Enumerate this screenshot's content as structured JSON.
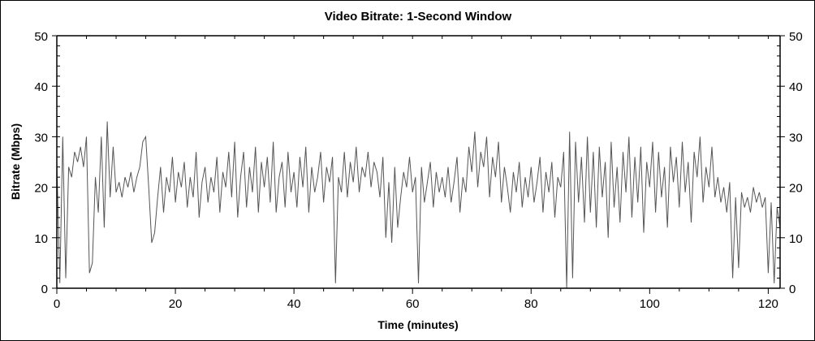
{
  "chart_data": {
    "type": "line",
    "title": "Video Bitrate: 1-Second Window",
    "xlabel": "Time (minutes)",
    "ylabel": "Bitrate (Mbps)",
    "xlim": [
      0,
      122
    ],
    "ylim": [
      0,
      50
    ],
    "x_ticks": [
      "0",
      "20",
      "40",
      "60",
      "80",
      "100",
      "120"
    ],
    "y_ticks": [
      "0",
      "10",
      "20",
      "30",
      "40",
      "50"
    ],
    "y_axis_right_mirrored": true,
    "grid": false,
    "legend": "none",
    "line_color": "#555555",
    "x_step": 0.5,
    "series": [
      {
        "values": [
          25,
          1,
          30,
          2,
          24,
          22,
          27,
          25,
          28,
          24,
          30,
          3,
          5,
          22,
          15,
          30,
          12,
          33,
          18,
          28,
          19,
          21,
          18,
          22,
          20,
          23,
          19,
          22,
          24,
          29,
          30,
          20,
          9,
          11,
          18,
          24,
          15,
          22,
          19,
          26,
          17,
          23,
          20,
          25,
          16,
          22,
          18,
          27,
          14,
          21,
          24,
          17,
          22,
          19,
          26,
          15,
          23,
          20,
          27,
          18,
          29,
          14,
          22,
          27,
          16,
          24,
          19,
          28,
          15,
          25,
          20,
          26,
          17,
          29,
          15,
          22,
          25,
          16,
          27,
          19,
          23,
          16,
          26,
          20,
          28,
          15,
          24,
          19,
          22,
          27,
          17,
          24,
          21,
          26,
          1,
          22,
          19,
          27,
          18,
          25,
          21,
          28,
          19,
          24,
          22,
          27,
          20,
          25,
          23,
          18,
          26,
          10,
          21,
          9,
          24,
          12,
          18,
          23,
          20,
          26,
          19,
          22,
          1,
          24,
          17,
          21,
          25,
          16,
          23,
          19,
          22,
          18,
          24,
          17,
          21,
          26,
          15,
          22,
          19,
          28,
          23,
          31,
          20,
          27,
          24,
          30,
          18,
          26,
          22,
          29,
          17,
          24,
          20,
          15,
          23,
          19,
          25,
          16,
          22,
          18,
          24,
          17,
          21,
          26,
          15,
          23,
          19,
          25,
          14,
          22,
          20,
          27,
          0,
          31,
          2,
          29,
          17,
          26,
          13,
          30,
          15,
          27,
          12,
          28,
          18,
          25,
          10,
          29,
          16,
          24,
          13,
          27,
          19,
          30,
          14,
          26,
          17,
          28,
          11,
          25,
          20,
          29,
          15,
          27,
          18,
          24,
          12,
          28,
          21,
          26,
          16,
          29,
          19,
          25,
          13,
          27,
          22,
          30,
          17,
          24,
          20,
          28,
          18,
          22,
          17,
          20,
          15,
          21,
          2,
          18,
          4,
          19,
          16,
          18,
          15,
          20,
          17,
          19,
          16,
          18,
          3,
          17,
          1,
          16,
          12
        ]
      }
    ]
  }
}
